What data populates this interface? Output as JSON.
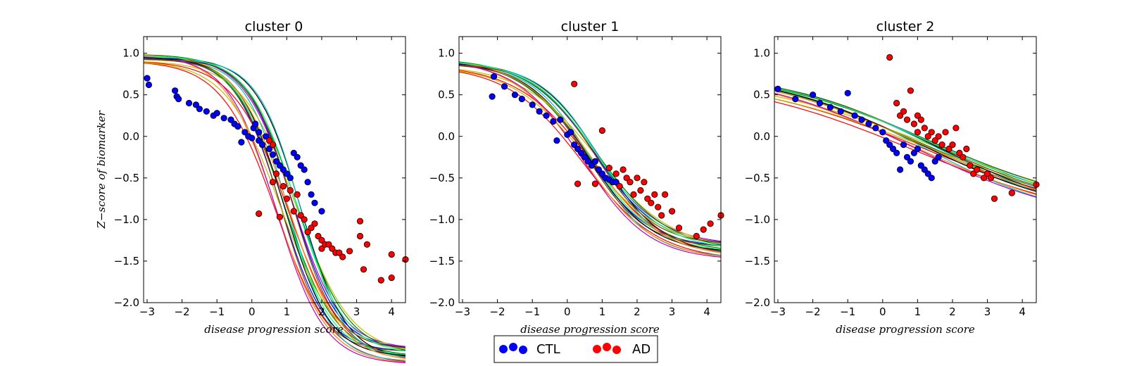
{
  "chart_data": [
    {
      "type": "scatter",
      "title": "cluster 0",
      "xlabel": "disease progression score",
      "ylabel": "Z−score of biomarker",
      "xlim": [
        -3.1,
        4.4
      ],
      "ylim": [
        -2.0,
        1.2
      ],
      "xticks": [
        "−3",
        "−2",
        "−1",
        "0",
        "1",
        "2",
        "3",
        "4"
      ],
      "yticks": [
        "1.0",
        "0.5",
        "0.0",
        "−0.5",
        "−1.0",
        "−1.5",
        "−2.0"
      ],
      "grid": false,
      "curves": {
        "count": 20,
        "L": -2.65,
        "U": 0.95,
        "center": 1.05,
        "center_spread": 0.35,
        "slope": 1.45
      },
      "series": [
        {
          "name": "CTL",
          "points": [
            [
              -3.0,
              0.7
            ],
            [
              -2.95,
              0.62
            ],
            [
              -2.2,
              0.55
            ],
            [
              -2.15,
              0.48
            ],
            [
              -2.1,
              0.45
            ],
            [
              -1.8,
              0.4
            ],
            [
              -1.6,
              0.38
            ],
            [
              -1.5,
              0.33
            ],
            [
              -1.3,
              0.3
            ],
            [
              -1.1,
              0.25
            ],
            [
              -1.0,
              0.28
            ],
            [
              -0.8,
              0.22
            ],
            [
              -0.6,
              0.2
            ],
            [
              -0.5,
              0.15
            ],
            [
              -0.4,
              0.12
            ],
            [
              -0.3,
              -0.07
            ],
            [
              -0.2,
              0.05
            ],
            [
              -0.1,
              0.0
            ],
            [
              0.0,
              -0.02
            ],
            [
              0.05,
              0.1
            ],
            [
              0.1,
              0.15
            ],
            [
              0.2,
              0.05
            ],
            [
              0.2,
              -0.05
            ],
            [
              0.3,
              -0.1
            ],
            [
              0.4,
              0.0
            ],
            [
              0.5,
              -0.15
            ],
            [
              0.6,
              -0.22
            ],
            [
              0.7,
              -0.3
            ],
            [
              0.8,
              -0.35
            ],
            [
              0.9,
              -0.4
            ],
            [
              1.0,
              -0.45
            ],
            [
              1.1,
              -0.5
            ],
            [
              1.2,
              -0.2
            ],
            [
              1.3,
              -0.25
            ],
            [
              1.4,
              -0.35
            ],
            [
              1.5,
              -0.4
            ],
            [
              1.6,
              -0.55
            ],
            [
              1.7,
              -0.7
            ],
            [
              1.8,
              -0.8
            ],
            [
              2.0,
              -0.9
            ]
          ]
        },
        {
          "name": "AD",
          "points": [
            [
              0.2,
              -0.93
            ],
            [
              0.5,
              -0.05
            ],
            [
              0.6,
              -0.1
            ],
            [
              0.6,
              -0.55
            ],
            [
              0.7,
              -0.45
            ],
            [
              0.8,
              -0.97
            ],
            [
              0.9,
              -0.6
            ],
            [
              1.0,
              -0.75
            ],
            [
              1.1,
              -0.65
            ],
            [
              1.2,
              -0.9
            ],
            [
              1.3,
              -0.7
            ],
            [
              1.4,
              -0.95
            ],
            [
              1.5,
              -1.0
            ],
            [
              1.6,
              -1.15
            ],
            [
              1.7,
              -1.1
            ],
            [
              1.8,
              -1.05
            ],
            [
              1.9,
              -1.2
            ],
            [
              2.0,
              -1.25
            ],
            [
              2.0,
              -1.35
            ],
            [
              2.1,
              -1.3
            ],
            [
              2.2,
              -1.3
            ],
            [
              2.3,
              -1.35
            ],
            [
              2.4,
              -1.4
            ],
            [
              2.5,
              -1.4
            ],
            [
              2.6,
              -1.45
            ],
            [
              2.8,
              -1.38
            ],
            [
              3.1,
              -1.02
            ],
            [
              3.1,
              -1.2
            ],
            [
              3.2,
              -1.6
            ],
            [
              3.3,
              -1.3
            ],
            [
              3.7,
              -1.73
            ],
            [
              4.0,
              -1.7
            ],
            [
              4.0,
              -1.42
            ],
            [
              4.4,
              -1.48
            ]
          ]
        }
      ]
    },
    {
      "type": "scatter",
      "title": "cluster 1",
      "xlabel": "disease progression score",
      "ylabel": "",
      "xlim": [
        -3.1,
        4.4
      ],
      "ylim": [
        -2.0,
        1.2
      ],
      "xticks": [
        "−3",
        "−2",
        "−1",
        "0",
        "1",
        "2",
        "3",
        "4"
      ],
      "yticks": [
        "1.0",
        "0.5",
        "0.0",
        "−0.5",
        "−1.0",
        "−1.5",
        "−2.0"
      ],
      "grid": false,
      "curves": {
        "count": 20,
        "L": -1.4,
        "U": 0.9,
        "center": 0.7,
        "center_spread": 0.25,
        "slope": 1.05
      },
      "series": [
        {
          "name": "CTL",
          "points": [
            [
              -2.1,
              0.72
            ],
            [
              -2.15,
              0.48
            ],
            [
              -1.8,
              0.6
            ],
            [
              -1.5,
              0.5
            ],
            [
              -1.3,
              0.45
            ],
            [
              -1.0,
              0.38
            ],
            [
              -0.8,
              0.3
            ],
            [
              -0.6,
              0.25
            ],
            [
              -0.4,
              0.18
            ],
            [
              -0.2,
              0.2
            ],
            [
              -0.3,
              -0.05
            ],
            [
              0.0,
              0.02
            ],
            [
              0.1,
              0.05
            ],
            [
              0.2,
              -0.1
            ],
            [
              0.3,
              -0.15
            ],
            [
              0.4,
              -0.2
            ],
            [
              0.5,
              -0.25
            ],
            [
              0.6,
              -0.3
            ],
            [
              0.7,
              -0.35
            ],
            [
              0.8,
              -0.3
            ],
            [
              0.9,
              -0.4
            ],
            [
              1.0,
              -0.45
            ],
            [
              1.1,
              -0.5
            ],
            [
              1.2,
              -0.52
            ],
            [
              1.3,
              -0.55
            ],
            [
              1.4,
              -0.55
            ]
          ]
        },
        {
          "name": "AD",
          "points": [
            [
              0.2,
              0.63
            ],
            [
              0.3,
              -0.57
            ],
            [
              0.8,
              -0.57
            ],
            [
              1.0,
              0.07
            ],
            [
              1.2,
              -0.38
            ],
            [
              1.4,
              -0.45
            ],
            [
              1.5,
              -0.6
            ],
            [
              1.6,
              -0.4
            ],
            [
              1.7,
              -0.5
            ],
            [
              1.8,
              -0.55
            ],
            [
              1.9,
              -0.7
            ],
            [
              2.0,
              -0.5
            ],
            [
              2.1,
              -0.65
            ],
            [
              2.2,
              -0.55
            ],
            [
              2.3,
              -0.75
            ],
            [
              2.4,
              -0.8
            ],
            [
              2.5,
              -0.7
            ],
            [
              2.6,
              -0.85
            ],
            [
              2.7,
              -0.95
            ],
            [
              2.8,
              -0.7
            ],
            [
              3.0,
              -0.9
            ],
            [
              3.2,
              -1.1
            ],
            [
              3.7,
              -1.2
            ],
            [
              3.9,
              -1.12
            ],
            [
              4.1,
              -1.05
            ],
            [
              4.4,
              -0.95
            ]
          ]
        }
      ]
    },
    {
      "type": "scatter",
      "title": "cluster 2",
      "xlabel": "disease progression score",
      "ylabel": "",
      "xlim": [
        -3.1,
        4.4
      ],
      "ylim": [
        -2.0,
        1.2
      ],
      "xticks": [
        "−3",
        "−2",
        "−1",
        "0",
        "1",
        "2",
        "3",
        "4"
      ],
      "yticks": [
        "1.0",
        "0.5",
        "0.0",
        "−0.5",
        "−1.0",
        "−1.5",
        "−2.0"
      ],
      "grid": false,
      "curves": {
        "count": 20,
        "L": -1.0,
        "U": 0.8,
        "center": 1.2,
        "center_spread": 0.3,
        "slope": 0.42
      },
      "series": [
        {
          "name": "CTL",
          "points": [
            [
              -3.0,
              0.57
            ],
            [
              -2.5,
              0.45
            ],
            [
              -2.0,
              0.5
            ],
            [
              -1.8,
              0.4
            ],
            [
              -1.5,
              0.35
            ],
            [
              -1.2,
              0.3
            ],
            [
              -1.0,
              0.52
            ],
            [
              -0.8,
              0.25
            ],
            [
              -0.6,
              0.2
            ],
            [
              -0.4,
              0.15
            ],
            [
              -0.2,
              0.1
            ],
            [
              0.0,
              0.05
            ],
            [
              0.1,
              -0.05
            ],
            [
              0.2,
              -0.1
            ],
            [
              0.3,
              -0.15
            ],
            [
              0.4,
              -0.2
            ],
            [
              0.5,
              -0.4
            ],
            [
              0.6,
              -0.1
            ],
            [
              0.7,
              -0.25
            ],
            [
              0.8,
              -0.3
            ],
            [
              0.9,
              -0.2
            ],
            [
              1.0,
              -0.15
            ],
            [
              1.1,
              -0.35
            ],
            [
              1.2,
              -0.4
            ],
            [
              1.3,
              -0.45
            ],
            [
              1.4,
              -0.5
            ],
            [
              1.5,
              -0.3
            ],
            [
              1.6,
              -0.25
            ]
          ]
        },
        {
          "name": "AD",
          "points": [
            [
              0.2,
              0.95
            ],
            [
              0.4,
              0.4
            ],
            [
              0.5,
              0.25
            ],
            [
              0.6,
              0.3
            ],
            [
              0.7,
              0.2
            ],
            [
              0.8,
              0.55
            ],
            [
              0.9,
              0.15
            ],
            [
              1.0,
              0.25
            ],
            [
              1.0,
              0.05
            ],
            [
              1.1,
              0.2
            ],
            [
              1.2,
              0.1
            ],
            [
              1.3,
              0.0
            ],
            [
              1.4,
              0.05
            ],
            [
              1.5,
              -0.05
            ],
            [
              1.6,
              0.0
            ],
            [
              1.7,
              -0.1
            ],
            [
              1.8,
              0.05
            ],
            [
              1.9,
              -0.15
            ],
            [
              2.0,
              -0.1
            ],
            [
              2.1,
              0.1
            ],
            [
              2.2,
              -0.2
            ],
            [
              2.3,
              -0.25
            ],
            [
              2.4,
              -0.15
            ],
            [
              2.5,
              -0.35
            ],
            [
              2.6,
              -0.45
            ],
            [
              2.7,
              -0.4
            ],
            [
              2.9,
              -0.5
            ],
            [
              3.0,
              -0.45
            ],
            [
              3.1,
              -0.5
            ],
            [
              3.2,
              -0.75
            ],
            [
              3.7,
              -0.68
            ],
            [
              4.4,
              -0.58
            ]
          ]
        }
      ]
    }
  ],
  "curve_palette": [
    "#ff0000",
    "#0000ff",
    "#008000",
    "#00bfbf",
    "#bf00bf",
    "#bfbf00",
    "#000000",
    "#ff7f00",
    "#7f3f00",
    "#00ff7f"
  ],
  "colors": {
    "CTL": "#0000ff",
    "AD": "#ff0000"
  },
  "legend": {
    "placement": "bottom-center",
    "items": [
      {
        "label": "CTL",
        "color": "#0000ff"
      },
      {
        "label": "AD",
        "color": "#ff0000"
      }
    ]
  }
}
